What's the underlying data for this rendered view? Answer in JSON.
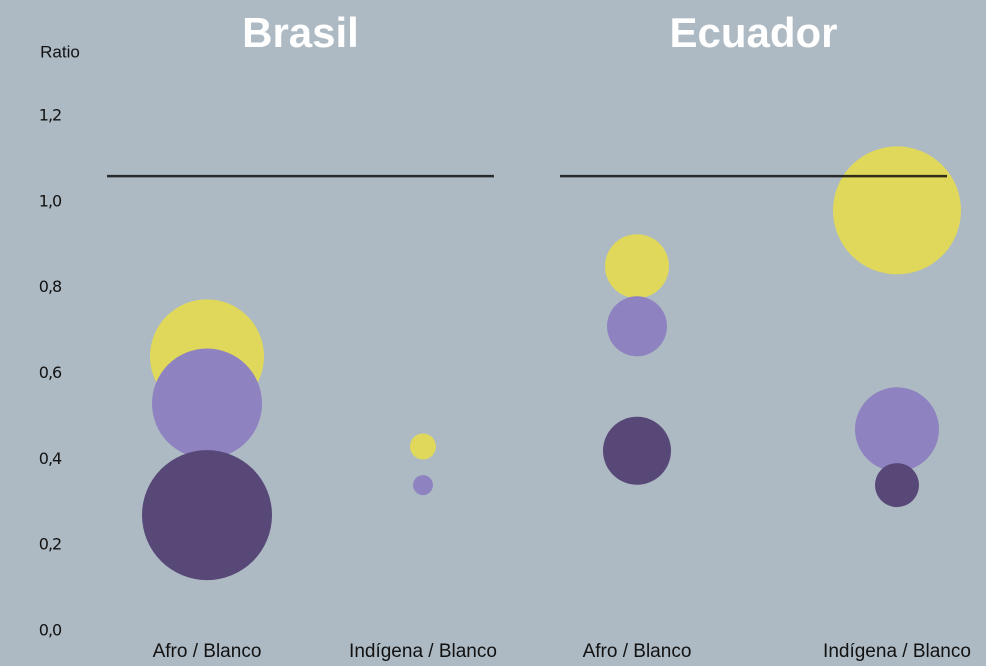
{
  "chart_data": [
    {
      "type": "bubble",
      "title": "Brasil",
      "y_label": "Ratio",
      "categories": [
        "Afro / Blanco",
        "Indígena / Blanco"
      ],
      "ylim": [
        0,
        1.2
      ],
      "yticks": [
        {
          "value": 0,
          "label": "0,0"
        },
        {
          "value": 0.2,
          "label": "0,2"
        },
        {
          "value": 0.4,
          "label": "0,4"
        },
        {
          "value": 0.6,
          "label": "0,6"
        },
        {
          "value": 0.8,
          "label": "0,8"
        },
        {
          "value": 1.0,
          "label": "1,0"
        },
        {
          "value": 1.2,
          "label": "1,2"
        }
      ],
      "reference_line": 1.06,
      "series": [
        {
          "color": "#e0d85a",
          "values": [
            0.64,
            0.43
          ],
          "sizes": [
            57,
            13
          ]
        },
        {
          "color": "#8e82c0",
          "values": [
            0.53,
            0.34
          ],
          "sizes": [
            55,
            10
          ]
        },
        {
          "color": "#574877",
          "values": [
            0.27,
            null
          ],
          "sizes": [
            65,
            null
          ]
        }
      ]
    },
    {
      "type": "bubble",
      "title": "Ecuador",
      "categories": [
        "Afro / Blanco",
        "Indígena / Blanco"
      ],
      "ylim": [
        0,
        1.2
      ],
      "reference_line": 1.06,
      "series": [
        {
          "color": "#e0d85a",
          "values": [
            0.85,
            0.98
          ],
          "sizes": [
            32,
            64
          ]
        },
        {
          "color": "#8e82c0",
          "values": [
            0.71,
            0.47
          ],
          "sizes": [
            30,
            42
          ]
        },
        {
          "color": "#574877",
          "values": [
            0.42,
            0.34
          ],
          "sizes": [
            34,
            22
          ]
        }
      ]
    }
  ]
}
